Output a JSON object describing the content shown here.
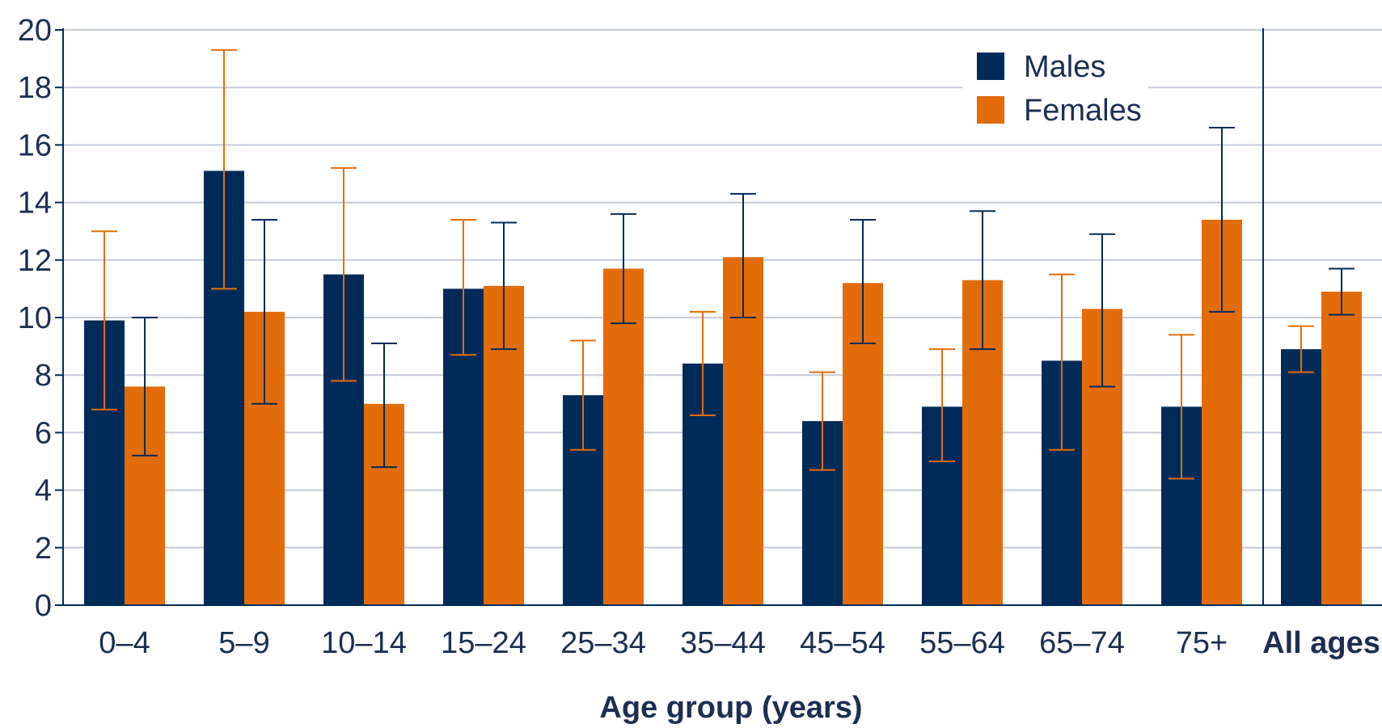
{
  "chart_data": {
    "type": "bar",
    "categories": [
      "0–4",
      "5–9",
      "10–14",
      "15–24",
      "25–34",
      "35–44",
      "45–54",
      "55–64",
      "65–74",
      "75+",
      "All ages"
    ],
    "series": [
      {
        "name": "Males",
        "color": "#002b59",
        "values": [
          9.9,
          15.1,
          11.5,
          11.0,
          7.3,
          8.4,
          6.4,
          6.9,
          8.5,
          6.9,
          8.9
        ],
        "error_low": [
          6.8,
          11.0,
          7.8,
          8.7,
          5.4,
          6.6,
          4.7,
          5.0,
          5.4,
          4.4,
          8.1
        ],
        "error_high": [
          13.0,
          19.3,
          15.2,
          13.4,
          9.2,
          10.2,
          8.1,
          8.9,
          11.5,
          9.4,
          9.7
        ],
        "error_color": "#e36c0a"
      },
      {
        "name": "Females",
        "color": "#e36c0a",
        "values": [
          7.6,
          10.2,
          7.0,
          11.1,
          11.7,
          12.1,
          11.2,
          11.3,
          10.3,
          13.4,
          10.9
        ],
        "error_low": [
          5.2,
          7.0,
          4.8,
          8.9,
          9.8,
          10.0,
          9.1,
          8.9,
          7.6,
          10.2,
          10.1
        ],
        "error_high": [
          10.0,
          13.4,
          9.1,
          13.3,
          13.6,
          14.3,
          13.4,
          13.7,
          12.9,
          16.6,
          11.7
        ],
        "error_color": "#002b59"
      }
    ],
    "yticks": [
      0,
      2,
      4,
      6,
      8,
      10,
      12,
      14,
      16,
      18,
      20
    ],
    "ylim": [
      0,
      20
    ],
    "xlabel": "Age group (years)",
    "ylabel": "",
    "bold_categories": [
      "All ages"
    ],
    "grid": true,
    "legend_position": "top-right",
    "colors": {
      "axis": "#002b59",
      "grid": "#c5cbd8",
      "text": "#1c2f52"
    }
  }
}
